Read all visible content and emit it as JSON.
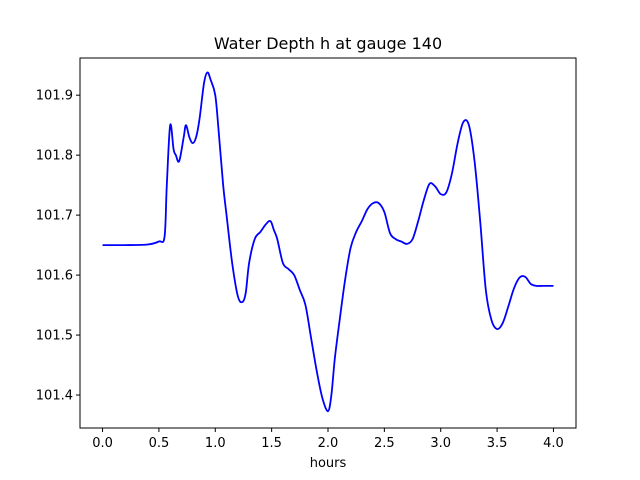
{
  "chart_data": {
    "type": "line",
    "title": "Water Depth h at gauge 140",
    "xlabel": "hours",
    "ylabel": "",
    "xlim": [
      -0.2,
      4.2
    ],
    "ylim": [
      101.345,
      101.962
    ],
    "xticks": [
      0.0,
      0.5,
      1.0,
      1.5,
      2.0,
      2.5,
      3.0,
      3.5,
      4.0
    ],
    "xtick_labels": [
      "0.0",
      "0.5",
      "1.0",
      "1.5",
      "2.0",
      "2.5",
      "3.0",
      "3.5",
      "4.0"
    ],
    "yticks": [
      101.4,
      101.5,
      101.6,
      101.7,
      101.8,
      101.9
    ],
    "ytick_labels": [
      "101.4",
      "101.5",
      "101.6",
      "101.7",
      "101.8",
      "101.9"
    ],
    "grid": false,
    "series": [
      {
        "name": "",
        "color": "#0000ff",
        "x": [
          0.0,
          0.2,
          0.4,
          0.5,
          0.55,
          0.57,
          0.6,
          0.63,
          0.65,
          0.68,
          0.72,
          0.74,
          0.77,
          0.8,
          0.83,
          0.86,
          0.9,
          0.93,
          0.96,
          1.0,
          1.03,
          1.07,
          1.1,
          1.15,
          1.2,
          1.24,
          1.27,
          1.3,
          1.35,
          1.4,
          1.45,
          1.49,
          1.52,
          1.55,
          1.6,
          1.65,
          1.7,
          1.75,
          1.8,
          1.85,
          1.9,
          1.95,
          2.0,
          2.03,
          2.06,
          2.1,
          2.15,
          2.2,
          2.25,
          2.3,
          2.35,
          2.4,
          2.45,
          2.5,
          2.55,
          2.6,
          2.65,
          2.7,
          2.75,
          2.8,
          2.85,
          2.9,
          2.95,
          3.0,
          3.05,
          3.1,
          3.15,
          3.2,
          3.25,
          3.3,
          3.35,
          3.4,
          3.45,
          3.5,
          3.55,
          3.6,
          3.65,
          3.7,
          3.75,
          3.8,
          3.85,
          3.9,
          3.95,
          4.0
        ],
        "y": [
          101.65,
          101.65,
          101.651,
          101.656,
          101.664,
          101.75,
          101.85,
          101.81,
          101.8,
          101.79,
          101.83,
          101.85,
          101.83,
          101.82,
          101.83,
          101.86,
          101.92,
          101.938,
          101.925,
          101.9,
          101.84,
          101.75,
          101.7,
          101.62,
          101.565,
          101.555,
          101.57,
          101.62,
          101.66,
          101.672,
          101.685,
          101.69,
          101.675,
          101.66,
          101.62,
          101.61,
          101.6,
          101.575,
          101.55,
          101.495,
          101.44,
          101.395,
          101.373,
          101.4,
          101.46,
          101.52,
          101.59,
          101.645,
          101.672,
          101.69,
          101.71,
          101.72,
          101.72,
          101.705,
          101.67,
          101.66,
          101.656,
          101.652,
          101.66,
          101.69,
          101.725,
          101.752,
          101.748,
          101.735,
          101.738,
          101.77,
          101.82,
          101.855,
          101.85,
          101.79,
          101.69,
          101.575,
          101.525,
          101.51,
          101.52,
          101.548,
          101.578,
          101.596,
          101.597,
          101.585,
          101.582,
          101.582,
          101.582,
          101.582
        ]
      }
    ]
  }
}
